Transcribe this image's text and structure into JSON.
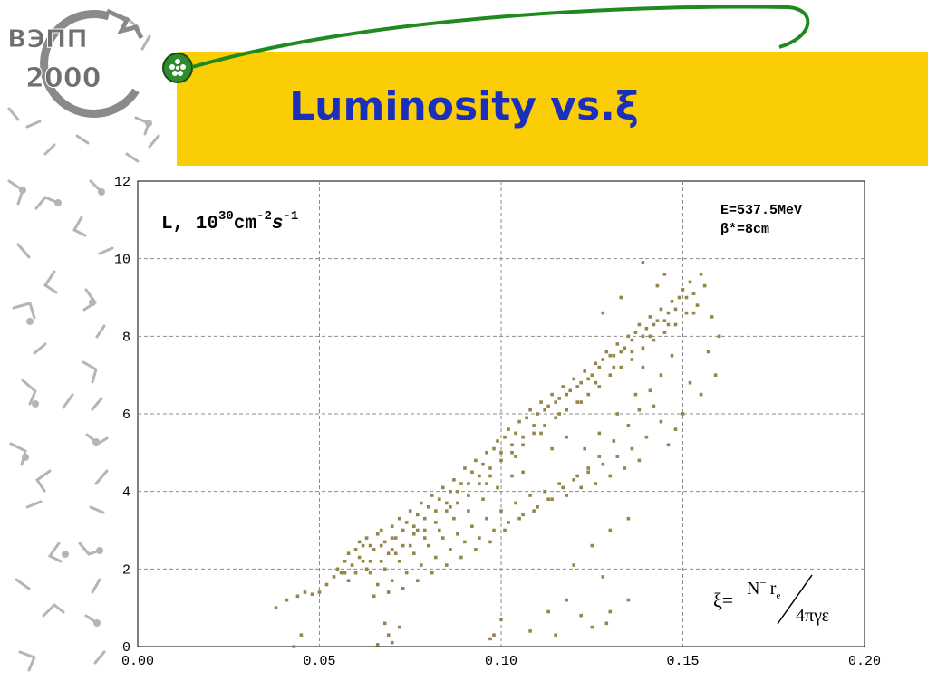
{
  "slide": {
    "title": "Luminosity vs.ξ",
    "logo_text_top": "ВЭПП",
    "logo_text_bottom": "2000"
  },
  "colors": {
    "banner": "#fbcd05",
    "title": "#1b2fbd",
    "points": "#958549",
    "orbit_line": "#1f8a1f"
  },
  "chart_data": {
    "type": "scatter",
    "title": "",
    "xlabel": "",
    "ylabel_parts": {
      "base": "L, 10",
      "exp1": "30",
      "mid": "cm",
      "exp2": "-2",
      "s": "s",
      "exp3": "-1"
    },
    "xlim": [
      0.0,
      0.2
    ],
    "ylim": [
      0,
      12
    ],
    "xticks": [
      "0.00",
      "0.05",
      "0.10",
      "0.15",
      "0.20"
    ],
    "yticks": [
      "0",
      "2",
      "4",
      "6",
      "8",
      "10",
      "12"
    ],
    "grid": true,
    "annotation_energy": "E=537.5MeV",
    "annotation_beta": "β*=8cm",
    "formula": {
      "lhs": "ξ=",
      "numerator_n": "N",
      "numerator_sup": "−",
      "numerator_r": "r",
      "numerator_sub": "e",
      "denominator": "4πγε"
    },
    "series": [
      {
        "points": [
          [
            0.038,
            1.0
          ],
          [
            0.041,
            1.2
          ],
          [
            0.044,
            1.3
          ],
          [
            0.046,
            1.4
          ],
          [
            0.048,
            1.35
          ],
          [
            0.05,
            1.4
          ],
          [
            0.052,
            1.6
          ],
          [
            0.054,
            1.8
          ],
          [
            0.055,
            2.0
          ],
          [
            0.057,
            2.2
          ],
          [
            0.058,
            2.4
          ],
          [
            0.06,
            2.5
          ],
          [
            0.061,
            2.3
          ],
          [
            0.062,
            2.6
          ],
          [
            0.063,
            2.8
          ],
          [
            0.064,
            2.2
          ],
          [
            0.065,
            2.5
          ],
          [
            0.066,
            2.9
          ],
          [
            0.067,
            3.0
          ],
          [
            0.068,
            2.7
          ],
          [
            0.069,
            2.4
          ],
          [
            0.07,
            3.1
          ],
          [
            0.071,
            2.8
          ],
          [
            0.072,
            3.3
          ],
          [
            0.073,
            2.6
          ],
          [
            0.074,
            3.2
          ],
          [
            0.075,
            3.5
          ],
          [
            0.076,
            2.9
          ],
          [
            0.077,
            3.4
          ],
          [
            0.078,
            3.7
          ],
          [
            0.079,
            3.0
          ],
          [
            0.08,
            3.6
          ],
          [
            0.081,
            3.9
          ],
          [
            0.082,
            3.2
          ],
          [
            0.083,
            3.8
          ],
          [
            0.084,
            4.1
          ],
          [
            0.085,
            3.5
          ],
          [
            0.086,
            4.0
          ],
          [
            0.087,
            4.3
          ],
          [
            0.088,
            3.7
          ],
          [
            0.089,
            4.2
          ],
          [
            0.09,
            4.6
          ],
          [
            0.091,
            3.9
          ],
          [
            0.092,
            4.5
          ],
          [
            0.093,
            4.8
          ],
          [
            0.094,
            4.2
          ],
          [
            0.095,
            4.7
          ],
          [
            0.096,
            5.0
          ],
          [
            0.097,
            4.4
          ],
          [
            0.098,
            5.1
          ],
          [
            0.099,
            5.3
          ],
          [
            0.1,
            4.8
          ],
          [
            0.101,
            5.4
          ],
          [
            0.102,
            5.6
          ],
          [
            0.103,
            5.0
          ],
          [
            0.104,
            5.5
          ],
          [
            0.105,
            5.8
          ],
          [
            0.106,
            5.2
          ],
          [
            0.107,
            5.9
          ],
          [
            0.108,
            6.1
          ],
          [
            0.109,
            5.5
          ],
          [
            0.11,
            6.0
          ],
          [
            0.111,
            6.3
          ],
          [
            0.112,
            5.7
          ],
          [
            0.113,
            6.2
          ],
          [
            0.114,
            6.5
          ],
          [
            0.115,
            5.9
          ],
          [
            0.116,
            6.4
          ],
          [
            0.117,
            6.7
          ],
          [
            0.118,
            6.1
          ],
          [
            0.119,
            6.6
          ],
          [
            0.12,
            6.9
          ],
          [
            0.121,
            6.3
          ],
          [
            0.122,
            6.8
          ],
          [
            0.123,
            7.1
          ],
          [
            0.124,
            6.5
          ],
          [
            0.125,
            7.0
          ],
          [
            0.126,
            7.3
          ],
          [
            0.127,
            6.7
          ],
          [
            0.128,
            7.4
          ],
          [
            0.129,
            7.6
          ],
          [
            0.13,
            7.0
          ],
          [
            0.131,
            7.5
          ],
          [
            0.132,
            7.8
          ],
          [
            0.133,
            7.2
          ],
          [
            0.134,
            7.7
          ],
          [
            0.135,
            8.0
          ],
          [
            0.136,
            7.4
          ],
          [
            0.137,
            8.1
          ],
          [
            0.138,
            8.3
          ],
          [
            0.139,
            7.7
          ],
          [
            0.14,
            8.2
          ],
          [
            0.141,
            8.5
          ],
          [
            0.142,
            7.9
          ],
          [
            0.143,
            8.4
          ],
          [
            0.144,
            8.7
          ],
          [
            0.145,
            8.1
          ],
          [
            0.146,
            8.6
          ],
          [
            0.147,
            8.9
          ],
          [
            0.148,
            8.3
          ],
          [
            0.149,
            9.0
          ],
          [
            0.15,
            9.2
          ],
          [
            0.151,
            8.6
          ],
          [
            0.152,
            9.4
          ],
          [
            0.153,
            9.1
          ],
          [
            0.154,
            8.8
          ],
          [
            0.155,
            9.6
          ],
          [
            0.156,
            9.3
          ],
          [
            0.158,
            8.5
          ],
          [
            0.16,
            8.0
          ],
          [
            0.157,
            7.6
          ],
          [
            0.159,
            7.0
          ],
          [
            0.155,
            6.5
          ],
          [
            0.152,
            6.8
          ],
          [
            0.15,
            6.0
          ],
          [
            0.148,
            5.6
          ],
          [
            0.146,
            5.2
          ],
          [
            0.144,
            5.8
          ],
          [
            0.142,
            6.2
          ],
          [
            0.14,
            5.4
          ],
          [
            0.138,
            4.8
          ],
          [
            0.136,
            5.1
          ],
          [
            0.134,
            4.6
          ],
          [
            0.132,
            4.9
          ],
          [
            0.13,
            4.4
          ],
          [
            0.128,
            4.7
          ],
          [
            0.126,
            4.2
          ],
          [
            0.124,
            4.5
          ],
          [
            0.122,
            4.1
          ],
          [
            0.12,
            4.3
          ],
          [
            0.118,
            3.9
          ],
          [
            0.116,
            4.2
          ],
          [
            0.114,
            3.8
          ],
          [
            0.112,
            4.0
          ],
          [
            0.11,
            3.6
          ],
          [
            0.108,
            3.9
          ],
          [
            0.106,
            3.4
          ],
          [
            0.104,
            3.7
          ],
          [
            0.102,
            3.2
          ],
          [
            0.1,
            3.5
          ],
          [
            0.098,
            3.0
          ],
          [
            0.096,
            3.3
          ],
          [
            0.094,
            2.8
          ],
          [
            0.092,
            3.1
          ],
          [
            0.09,
            2.7
          ],
          [
            0.088,
            2.9
          ],
          [
            0.086,
            2.5
          ],
          [
            0.084,
            2.8
          ],
          [
            0.082,
            2.3
          ],
          [
            0.08,
            2.6
          ],
          [
            0.078,
            2.1
          ],
          [
            0.076,
            2.4
          ],
          [
            0.074,
            1.9
          ],
          [
            0.072,
            2.2
          ],
          [
            0.07,
            1.7
          ],
          [
            0.068,
            2.0
          ],
          [
            0.066,
            1.6
          ],
          [
            0.064,
            1.9
          ],
          [
            0.12,
            2.1
          ],
          [
            0.125,
            2.6
          ],
          [
            0.13,
            3.0
          ],
          [
            0.135,
            3.3
          ],
          [
            0.128,
            1.8
          ],
          [
            0.118,
            1.2
          ],
          [
            0.122,
            0.8
          ],
          [
            0.125,
            0.5
          ],
          [
            0.115,
            0.3
          ],
          [
            0.113,
            0.9
          ],
          [
            0.108,
            0.4
          ],
          [
            0.1,
            0.7
          ],
          [
            0.098,
            0.3
          ],
          [
            0.097,
            0.2
          ],
          [
            0.069,
            0.3
          ],
          [
            0.068,
            0.6
          ],
          [
            0.07,
            0.1
          ],
          [
            0.072,
            0.5
          ],
          [
            0.066,
            0.05
          ],
          [
            0.043,
            0.0
          ],
          [
            0.045,
            0.3
          ],
          [
            0.13,
            0.9
          ],
          [
            0.135,
            1.2
          ],
          [
            0.129,
            0.6
          ],
          [
            0.139,
            9.9
          ],
          [
            0.133,
            9.0
          ],
          [
            0.128,
            8.6
          ],
          [
            0.145,
            9.6
          ],
          [
            0.143,
            9.3
          ],
          [
            0.139,
            7.2
          ],
          [
            0.137,
            6.5
          ],
          [
            0.132,
            6.0
          ],
          [
            0.127,
            5.5
          ],
          [
            0.123,
            5.1
          ],
          [
            0.118,
            5.4
          ],
          [
            0.114,
            5.1
          ],
          [
            0.106,
            4.5
          ],
          [
            0.103,
            4.4
          ],
          [
            0.099,
            4.1
          ],
          [
            0.095,
            3.8
          ],
          [
            0.091,
            3.5
          ],
          [
            0.087,
            3.3
          ],
          [
            0.083,
            3.0
          ],
          [
            0.079,
            2.8
          ],
          [
            0.075,
            2.6
          ],
          [
            0.071,
            2.4
          ],
          [
            0.067,
            2.2
          ],
          [
            0.063,
            2.0
          ],
          [
            0.06,
            1.9
          ],
          [
            0.058,
            1.7
          ],
          [
            0.056,
            1.9
          ],
          [
            0.059,
            2.1
          ],
          [
            0.061,
            2.7
          ],
          [
            0.064,
            2.6
          ],
          [
            0.067,
            2.6
          ],
          [
            0.07,
            2.8
          ],
          [
            0.073,
            3.0
          ],
          [
            0.076,
            3.1
          ],
          [
            0.079,
            3.3
          ],
          [
            0.082,
            3.5
          ],
          [
            0.085,
            3.7
          ],
          [
            0.088,
            4.0
          ],
          [
            0.091,
            4.2
          ],
          [
            0.094,
            4.4
          ],
          [
            0.097,
            4.6
          ],
          [
            0.1,
            5.0
          ],
          [
            0.103,
            5.2
          ],
          [
            0.106,
            5.4
          ],
          [
            0.109,
            5.7
          ],
          [
            0.112,
            6.1
          ],
          [
            0.115,
            6.3
          ],
          [
            0.118,
            6.5
          ],
          [
            0.121,
            6.7
          ],
          [
            0.124,
            6.9
          ],
          [
            0.127,
            7.2
          ],
          [
            0.13,
            7.5
          ],
          [
            0.133,
            7.6
          ],
          [
            0.136,
            7.9
          ],
          [
            0.139,
            8.0
          ],
          [
            0.142,
            8.3
          ],
          [
            0.145,
            8.4
          ],
          [
            0.148,
            8.7
          ],
          [
            0.151,
            9.0
          ],
          [
            0.147,
            7.5
          ],
          [
            0.144,
            7.0
          ],
          [
            0.141,
            6.6
          ],
          [
            0.138,
            6.1
          ],
          [
            0.135,
            5.7
          ],
          [
            0.131,
            5.3
          ],
          [
            0.127,
            4.9
          ],
          [
            0.124,
            4.6
          ],
          [
            0.121,
            4.4
          ],
          [
            0.117,
            4.1
          ],
          [
            0.113,
            3.8
          ],
          [
            0.109,
            3.5
          ],
          [
            0.105,
            3.3
          ],
          [
            0.101,
            3.0
          ],
          [
            0.097,
            2.7
          ],
          [
            0.093,
            2.5
          ],
          [
            0.089,
            2.3
          ],
          [
            0.085,
            2.1
          ],
          [
            0.081,
            1.9
          ],
          [
            0.077,
            1.7
          ],
          [
            0.073,
            1.5
          ],
          [
            0.069,
            1.4
          ],
          [
            0.065,
            1.3
          ],
          [
            0.111,
            5.5
          ],
          [
            0.104,
            4.9
          ],
          [
            0.096,
            4.2
          ],
          [
            0.086,
            3.6
          ],
          [
            0.077,
            3.0
          ],
          [
            0.07,
            2.5
          ],
          [
            0.062,
            2.2
          ],
          [
            0.057,
            1.9
          ],
          [
            0.116,
            6.0
          ],
          [
            0.122,
            6.3
          ],
          [
            0.126,
            6.8
          ],
          [
            0.131,
            7.2
          ],
          [
            0.136,
            7.6
          ],
          [
            0.141,
            8.0
          ],
          [
            0.146,
            8.3
          ],
          [
            0.153,
            8.6
          ]
        ]
      }
    ]
  }
}
